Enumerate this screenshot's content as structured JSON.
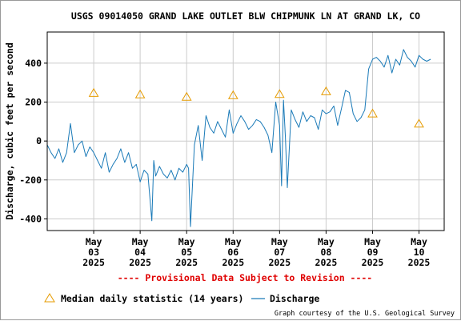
{
  "chart_data": {
    "type": "line",
    "title": "USGS 09014050 GRAND LAKE OUTLET BLW CHIPMUNK LN AT GRAND LK, CO",
    "ylabel": "Discharge, cubic feet per second",
    "xlabel": "",
    "ylim": [
      -460,
      560
    ],
    "yticks": [
      -400,
      -200,
      0,
      200,
      400
    ],
    "grid": true,
    "x_tick_dates": [
      "2025-05-03",
      "2025-05-04",
      "2025-05-05",
      "2025-05-06",
      "2025-05-07",
      "2025-05-08",
      "2025-05-09",
      "2025-05-10"
    ],
    "x_tick_labels": [
      [
        "May",
        "03",
        "2025"
      ],
      [
        "May",
        "04",
        "2025"
      ],
      [
        "May",
        "05",
        "2025"
      ],
      [
        "May",
        "06",
        "2025"
      ],
      [
        "May",
        "07",
        "2025"
      ],
      [
        "May",
        "08",
        "2025"
      ],
      [
        "May",
        "09",
        "2025"
      ],
      [
        "May",
        "10",
        "2025"
      ]
    ],
    "xlim": [
      "2025-05-02 00:00",
      "2025-05-10 13:00"
    ],
    "provisional_note": "---- Provisional Data Subject to Revision ----",
    "credit": "Graph courtesy of the U.S. Geological Survey",
    "median_points": {
      "name": "Median daily statistic (14 years)",
      "color": "#e69b00",
      "x": [
        "2025-05-03 00:00",
        "2025-05-04 00:00",
        "2025-05-05 00:00",
        "2025-05-06 00:00",
        "2025-05-07 00:00",
        "2025-05-08 00:00",
        "2025-05-09 00:00",
        "2025-05-10 00:00"
      ],
      "y": [
        248,
        240,
        228,
        236,
        242,
        256,
        142,
        90
      ]
    },
    "series": [
      {
        "name": "Discharge",
        "color": "#1a7ab8",
        "x": [
          "2025-05-02 00:00",
          "2025-05-02 02:00",
          "2025-05-02 04:00",
          "2025-05-02 06:00",
          "2025-05-02 08:00",
          "2025-05-02 10:00",
          "2025-05-02 12:00",
          "2025-05-02 14:00",
          "2025-05-02 16:00",
          "2025-05-02 18:00",
          "2025-05-02 20:00",
          "2025-05-02 22:00",
          "2025-05-03 00:00",
          "2025-05-03 02:00",
          "2025-05-03 04:00",
          "2025-05-03 06:00",
          "2025-05-03 08:00",
          "2025-05-03 10:00",
          "2025-05-03 12:00",
          "2025-05-03 14:00",
          "2025-05-03 16:00",
          "2025-05-03 18:00",
          "2025-05-03 20:00",
          "2025-05-03 22:00",
          "2025-05-04 00:00",
          "2025-05-04 02:00",
          "2025-05-04 04:00",
          "2025-05-04 06:00",
          "2025-05-04 07:00",
          "2025-05-04 08:00",
          "2025-05-04 10:00",
          "2025-05-04 12:00",
          "2025-05-04 14:00",
          "2025-05-04 16:00",
          "2025-05-04 18:00",
          "2025-05-04 20:00",
          "2025-05-04 22:00",
          "2025-05-05 00:00",
          "2025-05-05 01:00",
          "2025-05-05 02:00",
          "2025-05-05 04:00",
          "2025-05-05 06:00",
          "2025-05-05 08:00",
          "2025-05-05 10:00",
          "2025-05-05 12:00",
          "2025-05-05 14:00",
          "2025-05-05 16:00",
          "2025-05-05 18:00",
          "2025-05-05 20:00",
          "2025-05-05 22:00",
          "2025-05-06 00:00",
          "2025-05-06 02:00",
          "2025-05-06 04:00",
          "2025-05-06 06:00",
          "2025-05-06 08:00",
          "2025-05-06 10:00",
          "2025-05-06 12:00",
          "2025-05-06 14:00",
          "2025-05-06 16:00",
          "2025-05-06 18:00",
          "2025-05-06 20:00",
          "2025-05-06 22:00",
          "2025-05-07 00:00",
          "2025-05-07 01:00",
          "2025-05-07 02:00",
          "2025-05-07 03:00",
          "2025-05-07 04:00",
          "2025-05-07 06:00",
          "2025-05-07 08:00",
          "2025-05-07 10:00",
          "2025-05-07 12:00",
          "2025-05-07 14:00",
          "2025-05-07 16:00",
          "2025-05-07 18:00",
          "2025-05-07 20:00",
          "2025-05-07 22:00",
          "2025-05-08 00:00",
          "2025-05-08 02:00",
          "2025-05-08 04:00",
          "2025-05-08 06:00",
          "2025-05-08 08:00",
          "2025-05-08 10:00",
          "2025-05-08 12:00",
          "2025-05-08 14:00",
          "2025-05-08 16:00",
          "2025-05-08 18:00",
          "2025-05-08 20:00",
          "2025-05-08 22:00",
          "2025-05-09 00:00",
          "2025-05-09 02:00",
          "2025-05-09 04:00",
          "2025-05-09 06:00",
          "2025-05-09 08:00",
          "2025-05-09 10:00",
          "2025-05-09 12:00",
          "2025-05-09 14:00",
          "2025-05-09 16:00",
          "2025-05-09 18:00",
          "2025-05-09 20:00",
          "2025-05-09 22:00",
          "2025-05-10 00:00",
          "2025-05-10 02:00",
          "2025-05-10 04:00",
          "2025-05-10 06:00"
        ],
        "y": [
          -20,
          -60,
          -90,
          -40,
          -110,
          -60,
          90,
          -60,
          -20,
          0,
          -80,
          -30,
          -60,
          -100,
          -140,
          -60,
          -160,
          -120,
          -90,
          -40,
          -110,
          -60,
          -140,
          -120,
          -210,
          -150,
          -170,
          -410,
          -100,
          -180,
          -130,
          -170,
          -190,
          -150,
          -200,
          -140,
          -160,
          -120,
          -140,
          -440,
          -20,
          80,
          -100,
          130,
          70,
          40,
          100,
          60,
          20,
          160,
          40,
          90,
          130,
          100,
          60,
          80,
          110,
          100,
          70,
          30,
          -60,
          200,
          80,
          -230,
          210,
          20,
          -240,
          160,
          110,
          70,
          150,
          100,
          130,
          120,
          60,
          160,
          140,
          150,
          180,
          80,
          170,
          260,
          250,
          140,
          100,
          120,
          160,
          370,
          420,
          430,
          410,
          380,
          440,
          350,
          420,
          390,
          470,
          430,
          410,
          380,
          440,
          420,
          410,
          420
        ]
      }
    ]
  }
}
